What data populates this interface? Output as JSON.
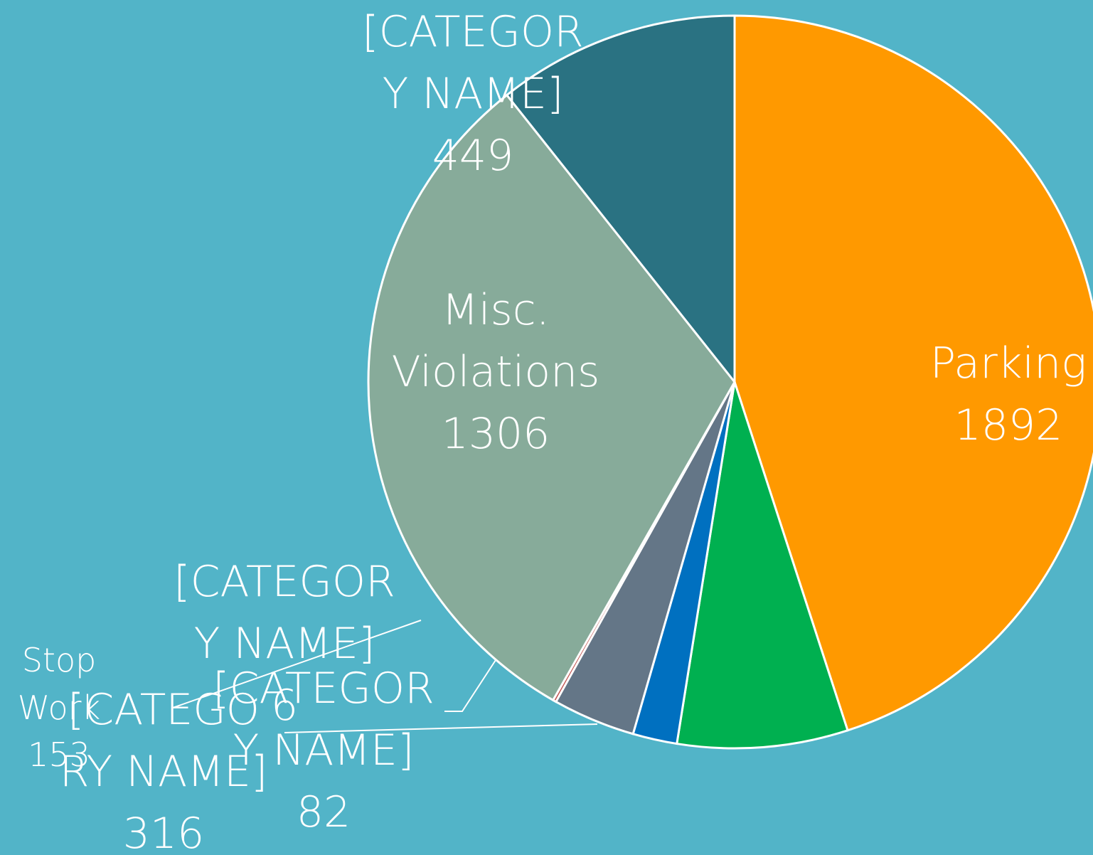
{
  "chart_data": {
    "type": "pie",
    "categories": [
      "Parking",
      "[CATEGORY NAME]",
      "[CATEGORY NAME]",
      "Stop Work",
      "[CATEGORY NAME]",
      "Misc. Violations",
      "[CATEGORY NAME]"
    ],
    "values": [
      1892,
      316,
      82,
      153,
      6,
      1306,
      449
    ],
    "colors": [
      "#ff9900",
      "#00b050",
      "#0070c0",
      "#647687",
      "#c0504d",
      "#87ab9a",
      "#2a7282"
    ],
    "background": "#52b4c8"
  }
}
